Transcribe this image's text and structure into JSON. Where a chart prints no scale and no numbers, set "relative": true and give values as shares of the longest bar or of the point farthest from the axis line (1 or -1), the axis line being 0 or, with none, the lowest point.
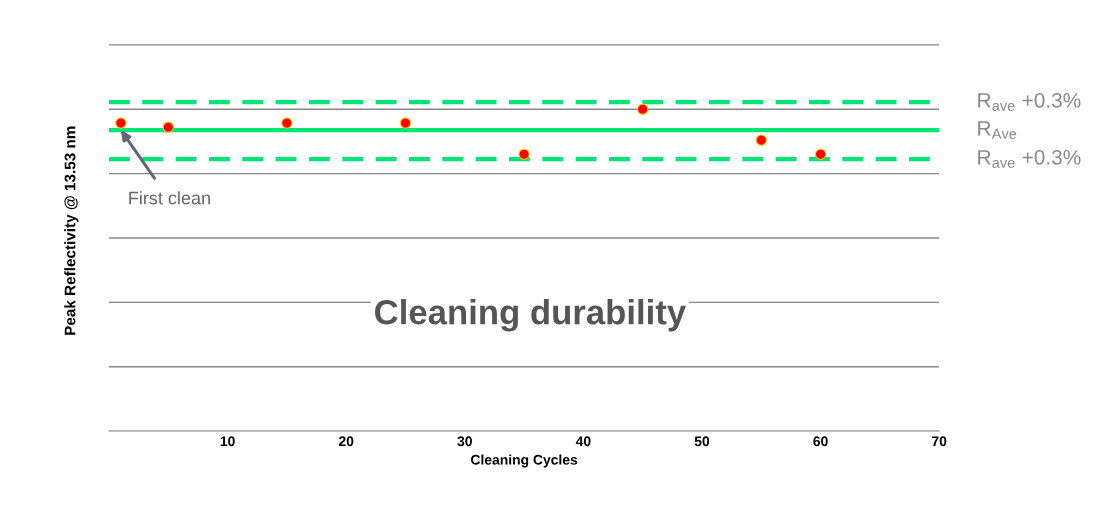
{
  "chart_data": {
    "type": "scatter",
    "xlabel": "Cleaning Cycles",
    "ylabel": "Peak Reflectivity @ 13.53 nm",
    "x": [
      1,
      5,
      15,
      25,
      35,
      45,
      55,
      60
    ],
    "values": [
      0.957,
      0.944,
      0.957,
      0.957,
      0.86,
      1.0,
      0.904,
      0.86
    ],
    "color": "#ff0000",
    "marker": "circle",
    "relative": true,
    "xlim": [
      0,
      70
    ],
    "xticks": [
      10,
      20,
      30,
      40,
      50,
      60,
      70
    ],
    "tick_labels": "x",
    "grid": "y",
    "ref_lines": [
      {
        "axis": "y",
        "value": 1.022,
        "label": "R$_{ave}$ +0.3%",
        "color": "#00e676",
        "line_style": "dashed"
      },
      {
        "axis": "y",
        "value": 0.935,
        "label": "R$_{Ave}$",
        "color": "#00e676",
        "line_style": "solid"
      },
      {
        "axis": "y",
        "value": 0.845,
        "label": "R$_{ave}$ +0.3%",
        "color": "#00e676",
        "line_style": "dashed"
      }
    ],
    "annotations": [
      {
        "text": "First clean",
        "x": 1,
        "y": 0.935
      },
      "Cleaning durability"
    ]
  }
}
